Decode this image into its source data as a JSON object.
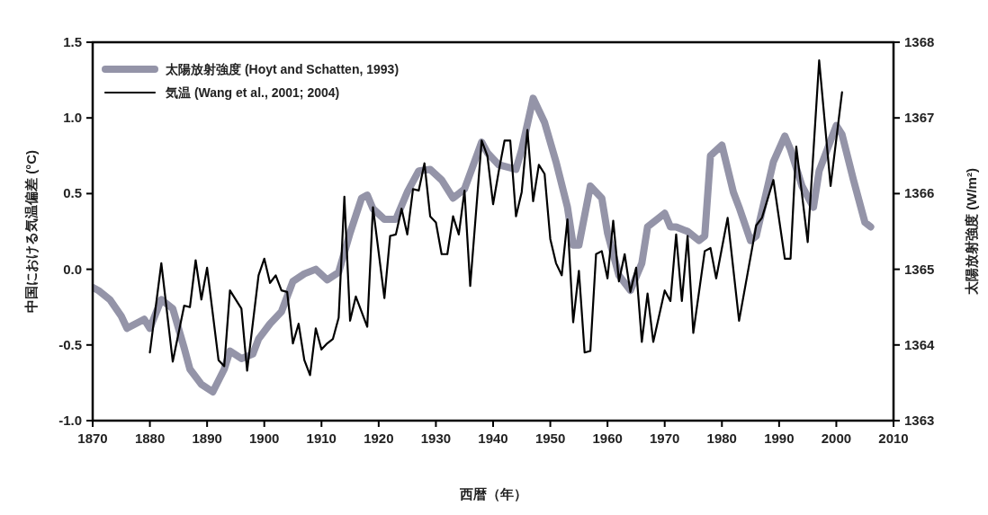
{
  "chart_data": {
    "type": "line",
    "xlabel": "西暦（年）",
    "ylabel": "中国における気温偏差 (°C)",
    "y2label": "太陽放射強度 (W/m²)",
    "xlim": [
      1870,
      2010
    ],
    "xticks": [
      1870,
      1880,
      1890,
      1900,
      1910,
      1920,
      1930,
      1940,
      1950,
      1960,
      1970,
      1980,
      1990,
      2000,
      2010
    ],
    "ylim": [
      -1.0,
      1.5
    ],
    "yticks": [
      {
        "value": -1.0,
        "label": "-1.0"
      },
      {
        "value": -0.5,
        "label": "-0.5"
      },
      {
        "value": 0,
        "label": "0.0"
      },
      {
        "value": 0.5,
        "label": "0.5"
      },
      {
        "value": 1.0,
        "label": "1.0"
      },
      {
        "value": 1.5,
        "label": "1.5"
      }
    ],
    "y2lim": [
      1363,
      1368
    ],
    "y2ticks": [
      1363,
      1364,
      1365,
      1366,
      1367,
      1368
    ],
    "legend": "top left",
    "series": [
      {
        "name": "太陽放射強度 (Hoyt and Schatten, 1993)",
        "color": "#9494a8",
        "axis": "y2",
        "x": [
          1870,
          1871,
          1873,
          1875,
          1876,
          1879,
          1880,
          1882,
          1884,
          1886,
          1887,
          1889,
          1891,
          1893,
          1894,
          1896,
          1898,
          1899,
          1901,
          1903,
          1905,
          1907,
          1909,
          1911,
          1913,
          1915,
          1917,
          1918,
          1919,
          1921,
          1923,
          1925,
          1927,
          1929,
          1931,
          1933,
          1935,
          1938,
          1939,
          1941,
          1944,
          1945,
          1947,
          1949,
          1951,
          1953,
          1954,
          1955,
          1957,
          1959,
          1960,
          1962,
          1964,
          1966,
          1967,
          1970,
          1971,
          1972,
          1974,
          1976,
          1977,
          1978,
          1980,
          1982,
          1983,
          1985,
          1986,
          1989,
          1991,
          1992,
          1994,
          1996,
          1997,
          2000,
          2001,
          2003,
          2005,
          2006
        ],
        "values": [
          1364.76,
          1364.72,
          1364.6,
          1364.38,
          1364.22,
          1364.34,
          1364.22,
          1364.6,
          1364.48,
          1363.96,
          1363.68,
          1363.48,
          1363.38,
          1363.68,
          1363.92,
          1363.82,
          1363.88,
          1364.08,
          1364.28,
          1364.44,
          1364.84,
          1364.94,
          1365.0,
          1364.86,
          1364.96,
          1365.48,
          1365.94,
          1365.98,
          1365.8,
          1365.66,
          1365.66,
          1366.02,
          1366.3,
          1366.32,
          1366.18,
          1365.94,
          1366.06,
          1366.68,
          1366.54,
          1366.38,
          1366.32,
          1366.58,
          1367.26,
          1366.94,
          1366.42,
          1365.82,
          1365.32,
          1365.32,
          1366.1,
          1365.94,
          1365.48,
          1364.92,
          1364.72,
          1365.08,
          1365.56,
          1365.74,
          1365.56,
          1365.56,
          1365.5,
          1365.38,
          1365.44,
          1366.5,
          1366.64,
          1366.02,
          1365.82,
          1365.38,
          1365.44,
          1366.42,
          1366.76,
          1366.58,
          1366.1,
          1365.82,
          1366.3,
          1366.9,
          1366.78,
          1366.18,
          1365.62,
          1365.56
        ]
      },
      {
        "name": "気温 (Wang et al., 2001; 2004)",
        "color": "#000000",
        "x": [
          1880,
          1882,
          1884,
          1886,
          1887,
          1888,
          1889,
          1890,
          1892,
          1893,
          1894,
          1896,
          1897,
          1899,
          1900,
          1901,
          1902,
          1903,
          1904,
          1905,
          1906,
          1907,
          1908,
          1909,
          1910,
          1911,
          1912,
          1913,
          1914,
          1915,
          1916,
          1918,
          1919,
          1921,
          1922,
          1923,
          1924,
          1925,
          1926,
          1927,
          1928,
          1929,
          1930,
          1931,
          1932,
          1933,
          1934,
          1935,
          1936,
          1938,
          1939,
          1940,
          1941,
          1942,
          1943,
          1944,
          1945,
          1946,
          1947,
          1948,
          1949,
          1950,
          1951,
          1952,
          1953,
          1954,
          1955,
          1956,
          1957,
          1958,
          1959,
          1960,
          1961,
          1962,
          1963,
          1964,
          1965,
          1966,
          1967,
          1968,
          1970,
          1971,
          1972,
          1973,
          1974,
          1975,
          1977,
          1978,
          1979,
          1981,
          1983,
          1986,
          1987,
          1989,
          1991,
          1992,
          1993,
          1995,
          1997,
          1999,
          2001
        ],
        "values": [
          -0.55,
          0.04,
          -0.61,
          -0.24,
          -0.25,
          0.06,
          -0.2,
          0.01,
          -0.6,
          -0.64,
          -0.14,
          -0.26,
          -0.67,
          -0.04,
          0.07,
          -0.09,
          -0.04,
          -0.14,
          -0.15,
          -0.49,
          -0.36,
          -0.6,
          -0.7,
          -0.39,
          -0.53,
          -0.49,
          -0.46,
          -0.32,
          0.48,
          -0.34,
          -0.18,
          -0.38,
          0.41,
          -0.19,
          0.22,
          0.23,
          0.4,
          0.23,
          0.53,
          0.52,
          0.7,
          0.35,
          0.31,
          0.1,
          0.1,
          0.35,
          0.23,
          0.52,
          -0.11,
          0.85,
          0.75,
          0.43,
          0.65,
          0.85,
          0.85,
          0.35,
          0.51,
          0.92,
          0.45,
          0.69,
          0.63,
          0.2,
          0.04,
          -0.04,
          0.33,
          -0.35,
          -0.01,
          -0.55,
          -0.54,
          0.1,
          0.12,
          -0.06,
          0.32,
          -0.08,
          0.1,
          -0.15,
          0.01,
          -0.48,
          -0.16,
          -0.48,
          -0.14,
          -0.21,
          0.23,
          -0.21,
          0.22,
          -0.42,
          0.12,
          0.14,
          -0.06,
          0.34,
          -0.34,
          0.29,
          0.34,
          0.59,
          0.07,
          0.07,
          0.81,
          0.18,
          1.38,
          0.55,
          1.17
        ]
      }
    ]
  }
}
